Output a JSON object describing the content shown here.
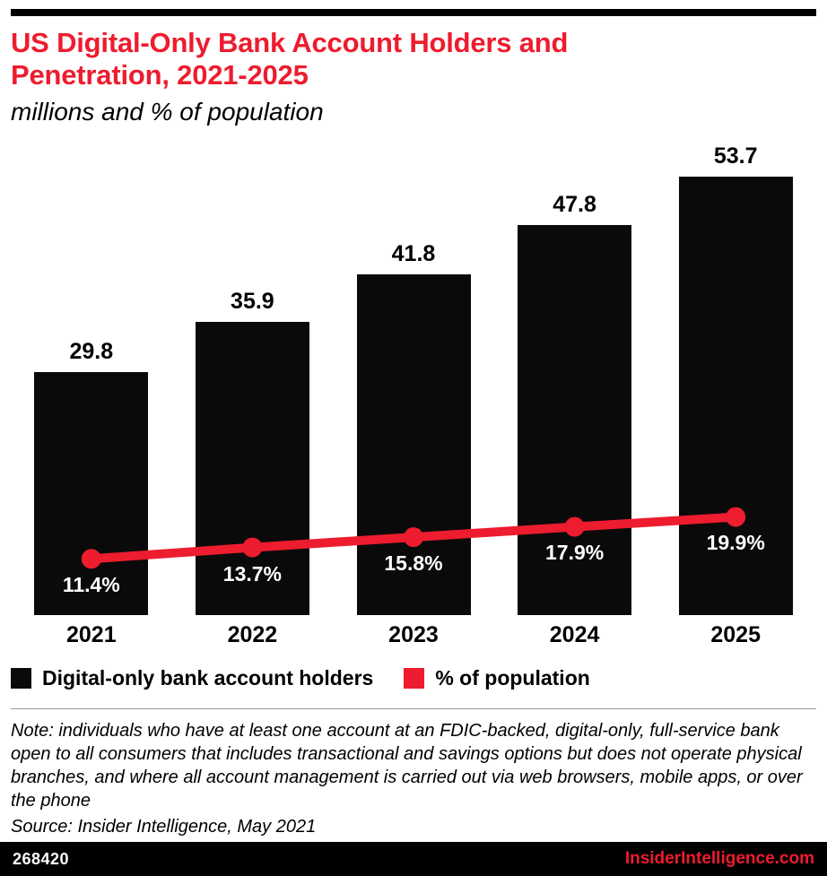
{
  "header": {
    "title_lines": [
      "US Digital-Only Bank Account Holders and",
      "Penetration, 2021-2025"
    ],
    "title_color": "#ed1c2e",
    "subtitle": "millions and % of population"
  },
  "chart_data": {
    "type": "bar",
    "categories": [
      "2021",
      "2022",
      "2023",
      "2024",
      "2025"
    ],
    "series": [
      {
        "name": "Digital-only bank account holders",
        "type": "bar",
        "color": "#0a0a0a",
        "unit": "millions",
        "values": [
          29.8,
          35.9,
          41.8,
          47.8,
          53.7
        ],
        "value_labels": [
          "29.8",
          "35.9",
          "41.8",
          "47.8",
          "53.7"
        ]
      },
      {
        "name": "% of population",
        "type": "line",
        "color": "#ed1c2e",
        "unit": "% of population",
        "values": [
          11.4,
          13.7,
          15.8,
          17.9,
          19.9
        ],
        "value_labels": [
          "11.4%",
          "13.7%",
          "15.8%",
          "17.9%",
          "19.9%"
        ]
      }
    ],
    "title": "US Digital-Only Bank Account Holders and Penetration, 2021-2025",
    "subtitle": "millions and % of population",
    "legend_position": "bottom",
    "grid": false
  },
  "legend": {
    "items": [
      {
        "label": "Digital-only bank account holders",
        "color": "#0a0a0a"
      },
      {
        "label": "% of population",
        "color": "#ed1c2e"
      }
    ]
  },
  "notes": {
    "note": "Note: individuals who have at least one account at an FDIC-backed, digital-only, full-service bank open to all consumers that includes transactional and savings options but does not operate physical branches, and where all account management is carried out via web browsers, mobile apps, or over the phone",
    "source": "Source: Insider Intelligence, May 2021"
  },
  "footer": {
    "chart_id": "268420",
    "site": "InsiderIntelligence.com",
    "site_color": "#ed1c2e"
  }
}
